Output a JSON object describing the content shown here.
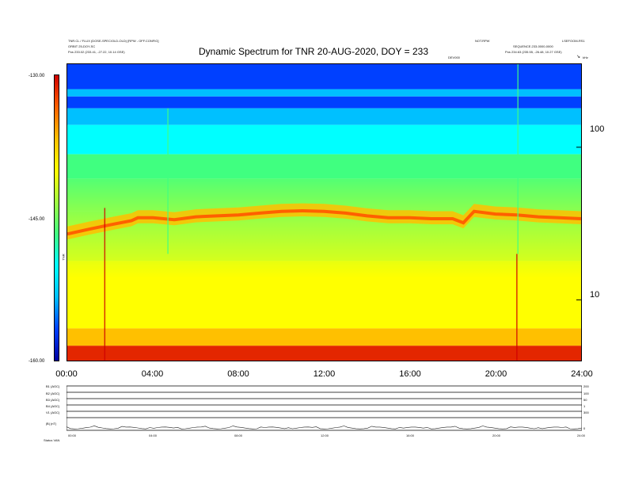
{
  "header": {
    "left_line1": "TNR.CL / FLUX (DOSE-SPEC/OLD-OLD) [RPW - OFF.CONFIG]",
    "left_line2": "ORBIT 25-DOY-SC",
    "left_line3": "Pos    233.02 (233.41, -27.22, 10.14 GSE)",
    "right_line1": "NOT.RPW",
    "right_line2": "SEQUENCE.233-0000-0000",
    "right_line3": "Pos    234.63 (235.55, -26.48, 10.27 GSE)",
    "mid_right_tag": "DEV000",
    "far_right_a": "LSEFOOM-RS1",
    "far_right_b": "kHz",
    "corner_mark": "↘"
  },
  "chart_data": {
    "type": "heatmap",
    "title": "Dynamic Spectrum for TNR 20-AUG-2020, DOY = 233",
    "x_ticks": [
      "00:00",
      "04:00",
      "08:00",
      "12:00",
      "16:00",
      "20:00",
      "24:00"
    ],
    "x_range_hours": [
      0,
      24
    ],
    "y_scale": "log",
    "y_ticks": [
      "100",
      "10"
    ],
    "y_tick_values": [
      100,
      10
    ],
    "y_range": [
      4,
      350
    ],
    "colorbar_ticks": [
      "-130.00",
      "-145.00",
      "-160.00"
    ],
    "colorbar_range": [
      -160,
      -130
    ],
    "colorbar_label": "TNR",
    "colorscale": [
      "#0000a0",
      "#0040ff",
      "#00c0ff",
      "#00ffff",
      "#40ff80",
      "#a0ff40",
      "#ffff00",
      "#ffc000",
      "#ff6000",
      "#d00000"
    ],
    "plasma_line_khz": [
      [
        0.0,
        27
      ],
      [
        1.0,
        29
      ],
      [
        2.0,
        31
      ],
      [
        3.0,
        33
      ],
      [
        3.3,
        34.5
      ],
      [
        4.0,
        34.5
      ],
      [
        4.5,
        34
      ],
      [
        5.0,
        33.5
      ],
      [
        6.0,
        35
      ],
      [
        7.0,
        35.5
      ],
      [
        8.0,
        36
      ],
      [
        9.0,
        37
      ],
      [
        10.0,
        38
      ],
      [
        11.0,
        38.3
      ],
      [
        12.0,
        38
      ],
      [
        13.0,
        37
      ],
      [
        14.0,
        35.5
      ],
      [
        15.0,
        34.5
      ],
      [
        16.0,
        34.5
      ],
      [
        17.0,
        34
      ],
      [
        18.0,
        34
      ],
      [
        18.5,
        32
      ],
      [
        19.0,
        38
      ],
      [
        20.0,
        36.5
      ],
      [
        21.0,
        36
      ],
      [
        22.0,
        35
      ],
      [
        23.0,
        34.5
      ],
      [
        24.0,
        34
      ]
    ]
  },
  "lower_panel": {
    "labels": [
      "B1 (AGC)",
      "B2 (AGC)",
      "B3 (AGC)",
      "B4 (AGC)",
      "V1 (AGC)",
      "|B| (nT)"
    ],
    "right_values": [
      "200",
      "100",
      "50",
      "1",
      "300",
      "0"
    ],
    "x_ticks": [
      "00:00",
      "04:00",
      "08:00",
      "12:00",
      "16:00",
      "20:00",
      "24:00"
    ],
    "footer": "Status  VAN"
  }
}
